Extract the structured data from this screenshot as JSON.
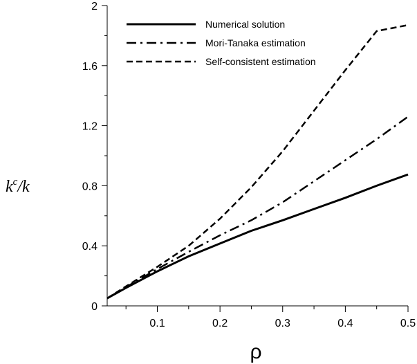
{
  "chart_data": {
    "type": "line",
    "xlabel": "ρ",
    "ylabel": {
      "main": "k",
      "sup": "c",
      "den": "/k"
    },
    "xlim": [
      0.02,
      0.5
    ],
    "ylim": [
      0,
      2
    ],
    "xticks": [
      0.1,
      0.2,
      0.3,
      0.4,
      0.5
    ],
    "xtick_labels": [
      "0.1",
      "0.2",
      "0.3",
      "0.4",
      "0.5"
    ],
    "yticks": [
      0,
      0.4,
      0.8,
      1.2,
      1.6,
      2
    ],
    "ytick_labels": [
      "0",
      "0.4",
      "0.8",
      "1.2",
      "1.6",
      "2"
    ],
    "grid": false,
    "legend_position": "top-left",
    "series": [
      {
        "name": "Numerical solution",
        "style": "solid",
        "x": [
          0.02,
          0.05,
          0.1,
          0.125,
          0.15,
          0.2,
          0.25,
          0.3,
          0.35,
          0.4,
          0.45,
          0.5
        ],
        "y": [
          0.05,
          0.12,
          0.23,
          0.28,
          0.33,
          0.415,
          0.5,
          0.57,
          0.645,
          0.72,
          0.8,
          0.875
        ]
      },
      {
        "name": "Mori-Tanaka estimation",
        "style": "dashdot",
        "x": [
          0.02,
          0.05,
          0.1,
          0.15,
          0.2,
          0.25,
          0.3,
          0.35,
          0.4,
          0.45,
          0.5
        ],
        "y": [
          0.05,
          0.125,
          0.245,
          0.36,
          0.47,
          0.57,
          0.69,
          0.83,
          0.97,
          1.11,
          1.26
        ]
      },
      {
        "name": "Self-consistent estimation",
        "style": "dashed",
        "x": [
          0.02,
          0.05,
          0.1,
          0.15,
          0.2,
          0.25,
          0.3,
          0.35,
          0.4,
          0.45,
          0.5
        ],
        "y": [
          0.05,
          0.13,
          0.26,
          0.4,
          0.58,
          0.79,
          1.03,
          1.3,
          1.57,
          1.83,
          1.87
        ]
      }
    ]
  }
}
